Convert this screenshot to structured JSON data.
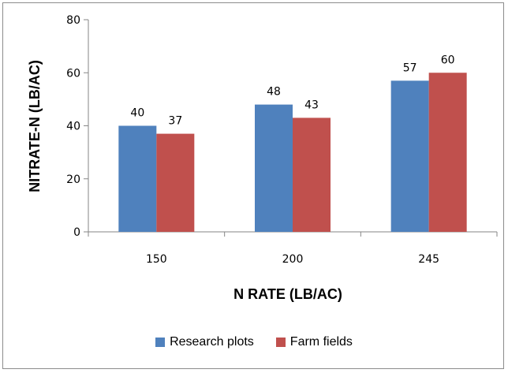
{
  "chart_data": {
    "type": "bar",
    "categories": [
      "150",
      "200",
      "245"
    ],
    "series": [
      {
        "name": "Research plots",
        "values": [
          40,
          48,
          57
        ],
        "color": "#4f81bd"
      },
      {
        "name": "Farm fields",
        "values": [
          37,
          43,
          60
        ],
        "color": "#c0504d"
      }
    ],
    "xlabel": "N RATE (LB/AC)",
    "ylabel": "NITRATE-N (LB/AC)",
    "ylim": [
      0,
      80
    ],
    "yticks": [
      0,
      20,
      40,
      60,
      80
    ],
    "grid": false,
    "legend_position": "bottom"
  }
}
